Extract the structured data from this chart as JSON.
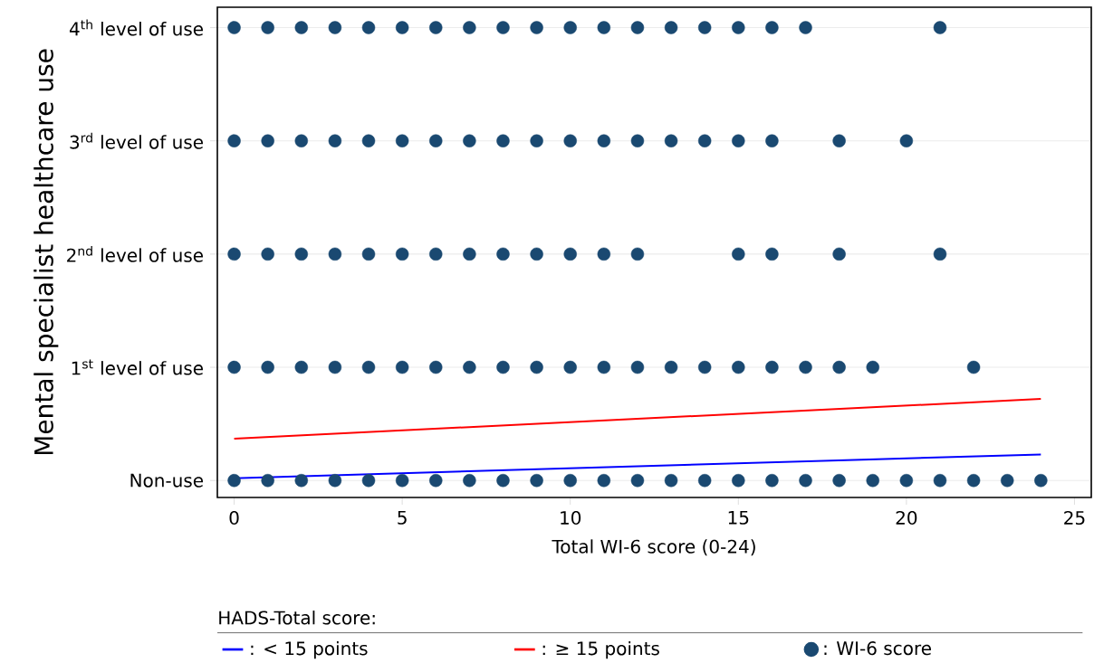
{
  "chart_data": {
    "type": "scatter",
    "xlabel": "Total WI-6 score (0-24)",
    "ylabel": "Mental specialist healthcare use",
    "legend_title": "HADS-Total score:",
    "xlim": [
      -0.5,
      25.5
    ],
    "ylim": [
      -0.15,
      4.18
    ],
    "xticks": [
      0,
      5,
      10,
      15,
      20,
      25
    ],
    "yticks": [
      {
        "value": 0,
        "label": "Non-use"
      },
      {
        "value": 1,
        "label": "1$^{st}$ level of use"
      },
      {
        "value": 2,
        "label": "2$^{nd}$ level of use"
      },
      {
        "value": 3,
        "label": "3$^{rd}$ level of use"
      },
      {
        "value": 4,
        "label": "4$^{th}$ level of use"
      }
    ],
    "grid": "y",
    "legend": "bottom",
    "marker": "circle",
    "series": [
      {
        "name": ": < 15 points",
        "type": "line",
        "marker": "none",
        "color": "#0000ff",
        "x": [
          0,
          24
        ],
        "values": [
          0.02,
          0.23
        ]
      },
      {
        "name": ": ≥ 15 points",
        "type": "line",
        "marker": "none",
        "color": "#ff0000",
        "x": [
          0,
          24
        ],
        "values": [
          0.37,
          0.72
        ]
      },
      {
        "name": ": WI-6 score",
        "color": "#1a4971",
        "x": [
          0,
          1,
          2,
          3,
          4,
          5,
          6,
          7,
          8,
          9,
          10,
          11,
          12,
          13,
          14,
          15,
          16,
          17,
          21,
          0,
          1,
          2,
          3,
          4,
          5,
          6,
          7,
          8,
          9,
          10,
          11,
          12,
          13,
          14,
          15,
          16,
          18,
          20,
          0,
          1,
          2,
          3,
          4,
          5,
          6,
          7,
          8,
          9,
          10,
          11,
          12,
          15,
          16,
          18,
          21,
          0,
          1,
          2,
          3,
          4,
          5,
          6,
          7,
          8,
          9,
          10,
          11,
          12,
          13,
          14,
          15,
          16,
          17,
          18,
          19,
          22,
          0,
          1,
          2,
          3,
          4,
          5,
          6,
          7,
          8,
          9,
          10,
          11,
          12,
          13,
          14,
          15,
          16,
          17,
          18,
          19,
          20,
          21,
          22,
          23,
          24
        ],
        "values": [
          4,
          4,
          4,
          4,
          4,
          4,
          4,
          4,
          4,
          4,
          4,
          4,
          4,
          4,
          4,
          4,
          4,
          4,
          4,
          3,
          3,
          3,
          3,
          3,
          3,
          3,
          3,
          3,
          3,
          3,
          3,
          3,
          3,
          3,
          3,
          3,
          3,
          3,
          2,
          2,
          2,
          2,
          2,
          2,
          2,
          2,
          2,
          2,
          2,
          2,
          2,
          2,
          2,
          2,
          2,
          1,
          1,
          1,
          1,
          1,
          1,
          1,
          1,
          1,
          1,
          1,
          1,
          1,
          1,
          1,
          1,
          1,
          1,
          1,
          1,
          1,
          0,
          0,
          0,
          0,
          0,
          0,
          0,
          0,
          0,
          0,
          0,
          0,
          0,
          0,
          0,
          0,
          0,
          0,
          0,
          0,
          0,
          0,
          0,
          0,
          0
        ]
      }
    ]
  }
}
